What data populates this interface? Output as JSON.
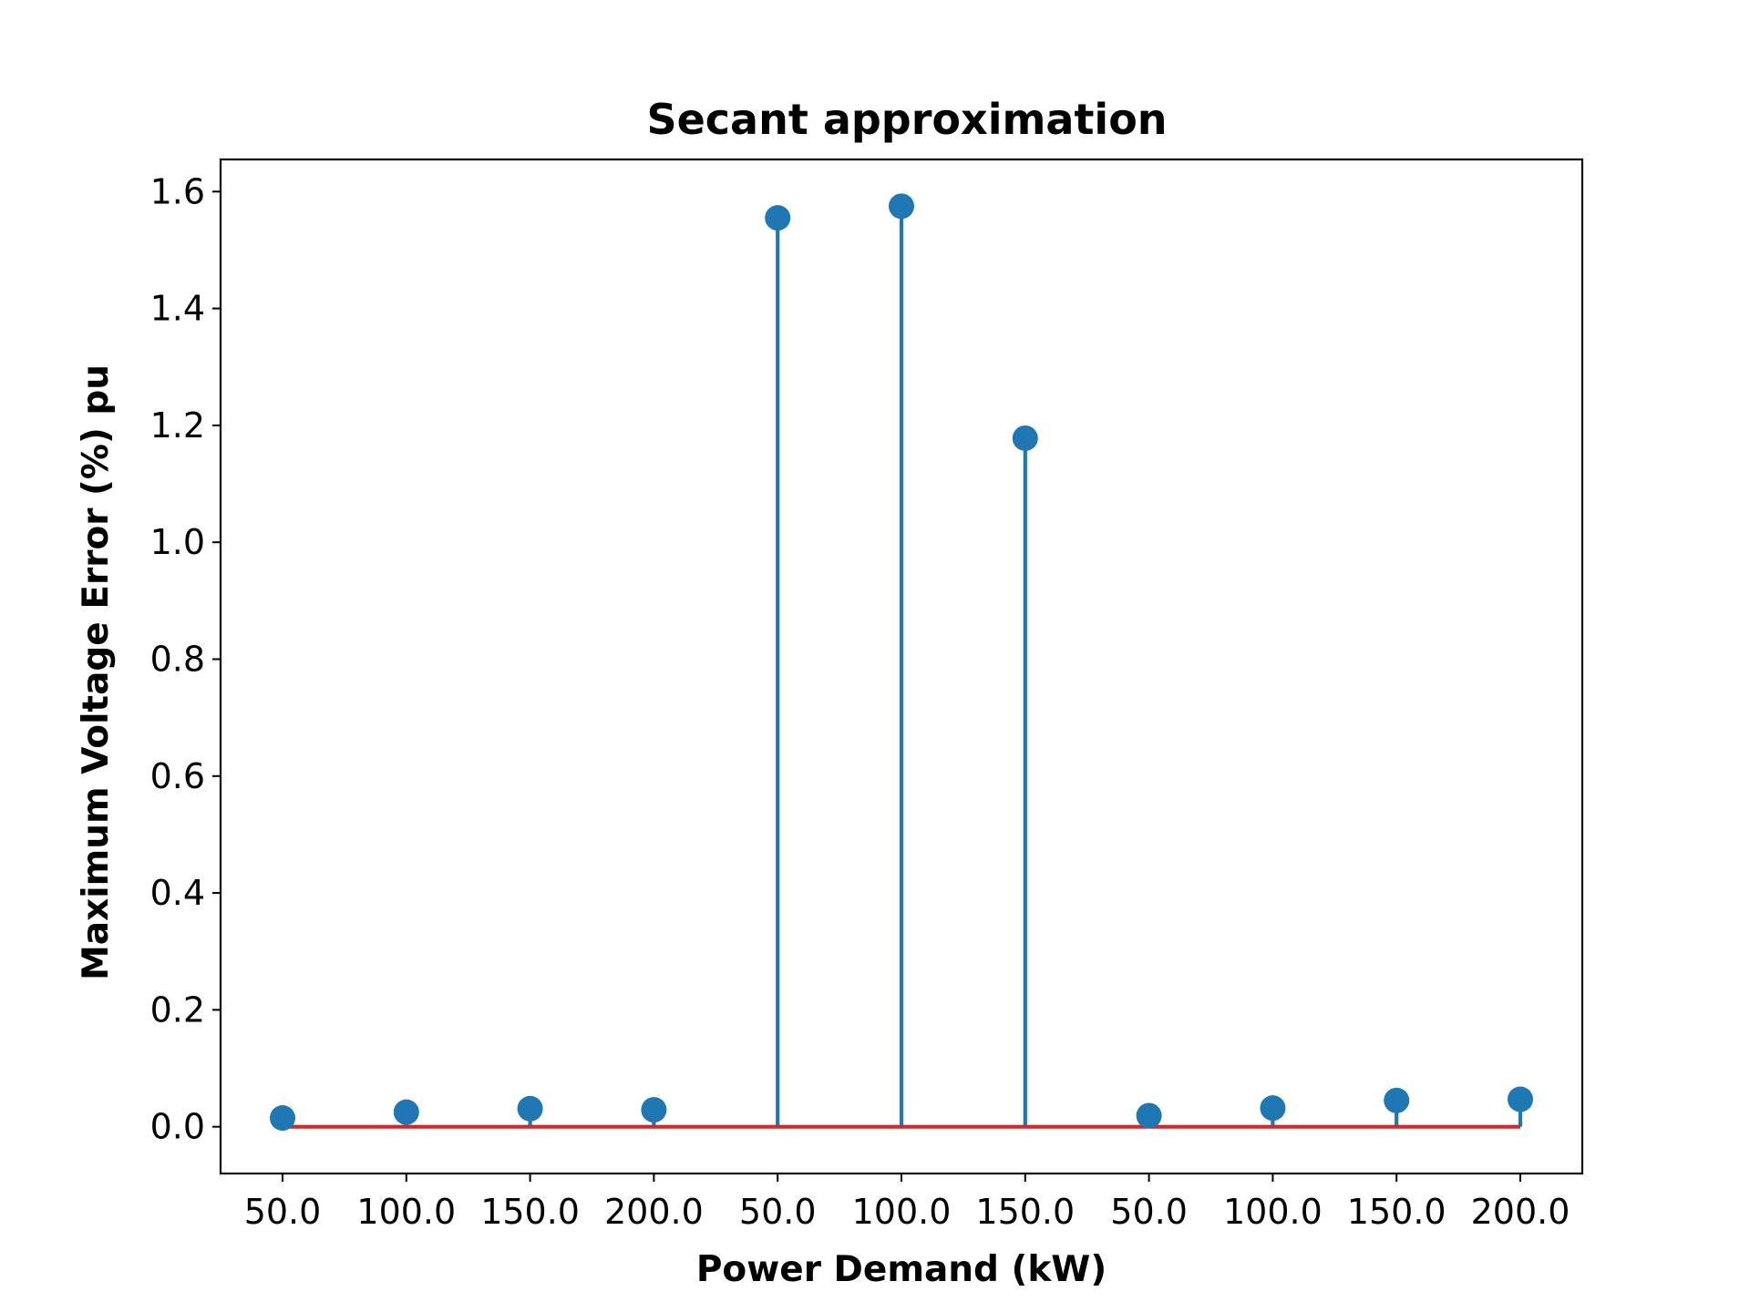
{
  "chart_data": {
    "type": "stem",
    "title": "Secant approximation",
    "xlabel": "Power Demand (kW)",
    "ylabel": "Maximum Voltage Error (%) pu",
    "categories": [
      "50.0",
      "100.0",
      "150.0",
      "200.0",
      "50.0",
      "100.0",
      "150.0",
      "50.0",
      "100.0",
      "150.0",
      "200.0"
    ],
    "values": [
      0.015,
      0.025,
      0.031,
      0.029,
      1.555,
      1.575,
      1.178,
      0.019,
      0.032,
      0.045,
      0.047
    ],
    "baseline": 0.0,
    "ylim": [
      -0.08,
      1.655
    ],
    "yticks": [
      "0.0",
      "0.2",
      "0.4",
      "0.6",
      "0.8",
      "1.0",
      "1.2",
      "1.4",
      "1.6"
    ],
    "grid": false,
    "legend": "none",
    "colors": {
      "stem": "#1f77b4",
      "marker": "#1f77b4",
      "baseline": "#d62728"
    }
  }
}
